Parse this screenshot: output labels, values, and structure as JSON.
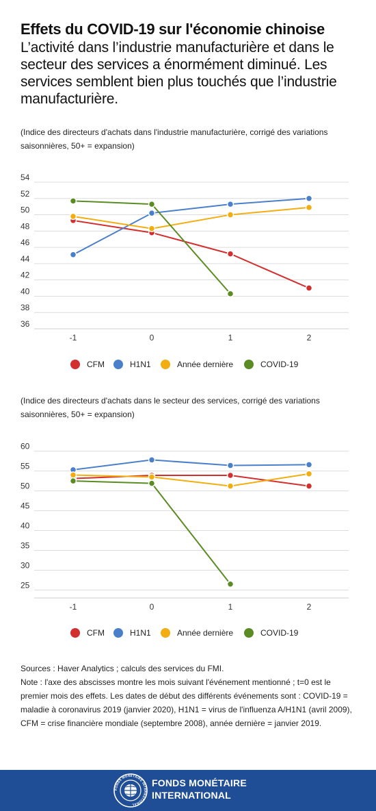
{
  "title": "Effets du COVID-19 sur l'économie chinoise",
  "subtitle": "L’activité dans l’industrie manufacturière et dans le secteur des services a énormément diminué. Les services semblent bien plus touchés que l’industrie manufacturière.",
  "colors": {
    "CFM": "#d32f2f",
    "H1N1": "#4a7fc9",
    "Année dernière": "#f2ad0f",
    "COVID-19": "#5a8c23"
  },
  "chart_data": [
    {
      "type": "line",
      "note": "(Indice des directeurs d'achats dans l'industrie manufacturière, corrigé des variations saisonnières, 50+ = expansion)",
      "x": [
        -1,
        0,
        1,
        2
      ],
      "x_ticks": [
        "-1",
        "0",
        "1",
        "2"
      ],
      "y_ticks": [
        36,
        38,
        40,
        42,
        44,
        46,
        48,
        50,
        52,
        54
      ],
      "ylim": [
        36,
        54
      ],
      "grid": true,
      "legend_position": "bottom",
      "series": [
        {
          "name": "CFM",
          "values": [
            49.3,
            47.8,
            45.2,
            41.0
          ]
        },
        {
          "name": "H1N1",
          "values": [
            45.1,
            50.2,
            51.3,
            52.0
          ]
        },
        {
          "name": "Année dernière",
          "values": [
            49.8,
            48.3,
            50.0,
            50.9
          ]
        },
        {
          "name": "COVID-19",
          "values": [
            51.7,
            51.3,
            40.3,
            null
          ]
        }
      ]
    },
    {
      "type": "line",
      "note": "(Indice des directeurs d'achats dans le secteur des services, corrigé des variations saisonnières, 50+ = expansion)",
      "x": [
        -1,
        0,
        1,
        2
      ],
      "x_ticks": [
        "-1",
        "0",
        "1",
        "2"
      ],
      "y_ticks": [
        25,
        30,
        35,
        40,
        45,
        50,
        55,
        60
      ],
      "ylim": [
        23,
        61.5
      ],
      "grid": true,
      "legend_position": "bottom",
      "series": [
        {
          "name": "CFM",
          "values": [
            53.1,
            53.9,
            53.9,
            51.2
          ]
        },
        {
          "name": "H1N1",
          "values": [
            55.3,
            57.8,
            56.4,
            56.6
          ]
        },
        {
          "name": "Année dernière",
          "values": [
            54.0,
            53.5,
            51.2,
            54.3
          ]
        },
        {
          "name": "COVID-19",
          "values": [
            52.5,
            51.9,
            26.5,
            null
          ]
        }
      ]
    }
  ],
  "legend": [
    "CFM",
    "H1N1",
    "Année dernière",
    "COVID-19"
  ],
  "sources_line": "Sources : Haver Analytics ; calculs des services du FMI.",
  "note_line": "Note : l'axe des abscisses montre les mois suivant l'événement mentionné ; t=0 est le premier mois des effets. Les dates de début des différents événements sont : COVID-19 = maladie à coronavirus 2019 (janvier 2020), H1N1 = virus de l'influenza A/H1N1 (avril 2009), CFM = crise financière mondiale (septembre 2008), année dernière = janvier 2019.",
  "footer": {
    "line1": "FONDS MONÉTAIRE",
    "line2": "INTERNATIONAL",
    "seal_text": "FONDS MONÉTAIRE INTERNATIONAL"
  }
}
